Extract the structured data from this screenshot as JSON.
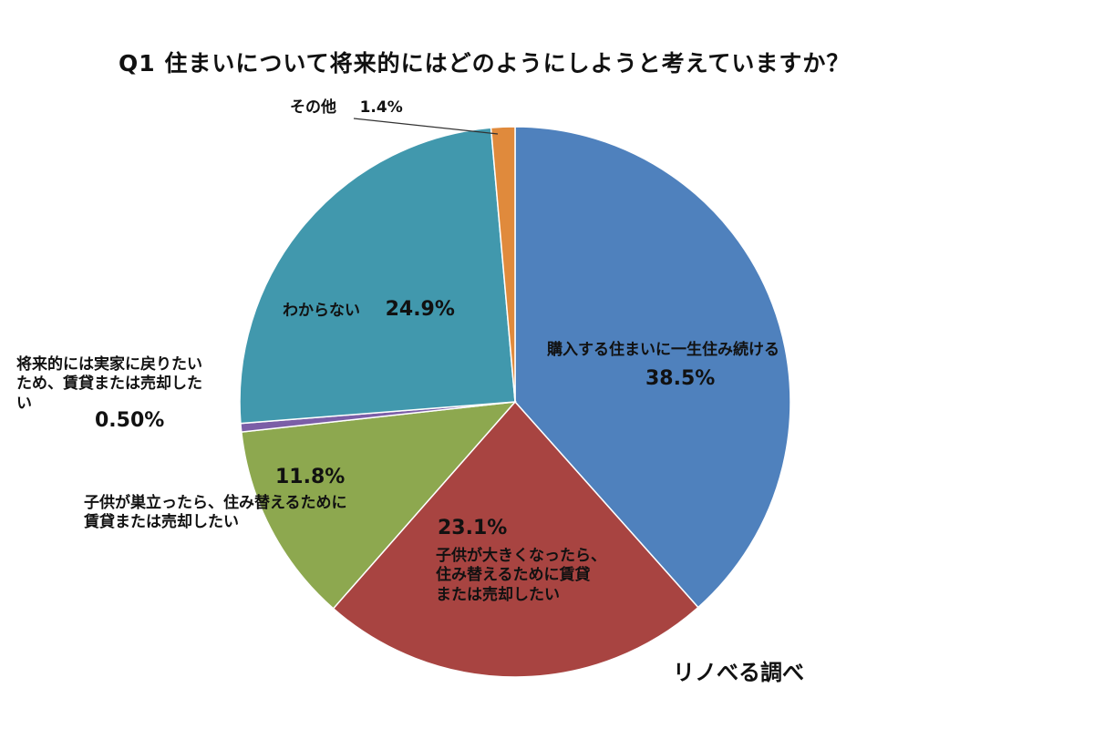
{
  "chart_data": {
    "type": "pie",
    "title": "Q1 住まいについて将来的にはどのようにしようと考えていますか？",
    "slices": [
      {
        "label": "購入する住まいに一生住み続ける",
        "value": 38.5,
        "value_label": "38.5%",
        "color": "#4f81bd"
      },
      {
        "label": "子供が大きくなったら、住み替えるために賃貸または売却したい",
        "value": 23.1,
        "value_label": "23.1%",
        "color": "#a84441"
      },
      {
        "label": "子供が巣立ったら、住み替えるために賃貸または売却したい",
        "value": 11.8,
        "value_label": "11.8%",
        "color": "#8da84f"
      },
      {
        "label": "将来的には実家に戻りたいため、賃貸または売却したい",
        "value": 0.5,
        "value_label": "0.50%",
        "color": "#7b5ea7"
      },
      {
        "label": "わからない",
        "value": 24.9,
        "value_label": "24.9%",
        "color": "#4198ad"
      },
      {
        "label": "その他",
        "value": 1.4,
        "value_label": "1.4%",
        "color": "#e08a3c"
      }
    ],
    "start_angle_deg": 0,
    "direction": "clockwise"
  },
  "labels": {
    "s0_text": "購入する住まいに一生住み続ける",
    "s0_pct": "38.5%",
    "s1_pct": "23.1%",
    "s1_line1": "子供が大きくなったら、",
    "s1_line2": "住み替えるために賃貸",
    "s1_line3": "または売却したい",
    "s2_pct": "11.8%",
    "s2_line1": "子供が巣立ったら、住み替えるために",
    "s2_line2": "賃貸または売却したい",
    "s3_line1": "将来的には実家に戻りたい",
    "s3_line2": "ため、賃貸または売却した",
    "s3_line3": "い",
    "s3_pct": "0.50%",
    "s4_text": "わからない",
    "s4_pct": "24.9%",
    "s5_text": "その他",
    "s5_pct": "1.4%"
  },
  "source": "リノべる調べ"
}
